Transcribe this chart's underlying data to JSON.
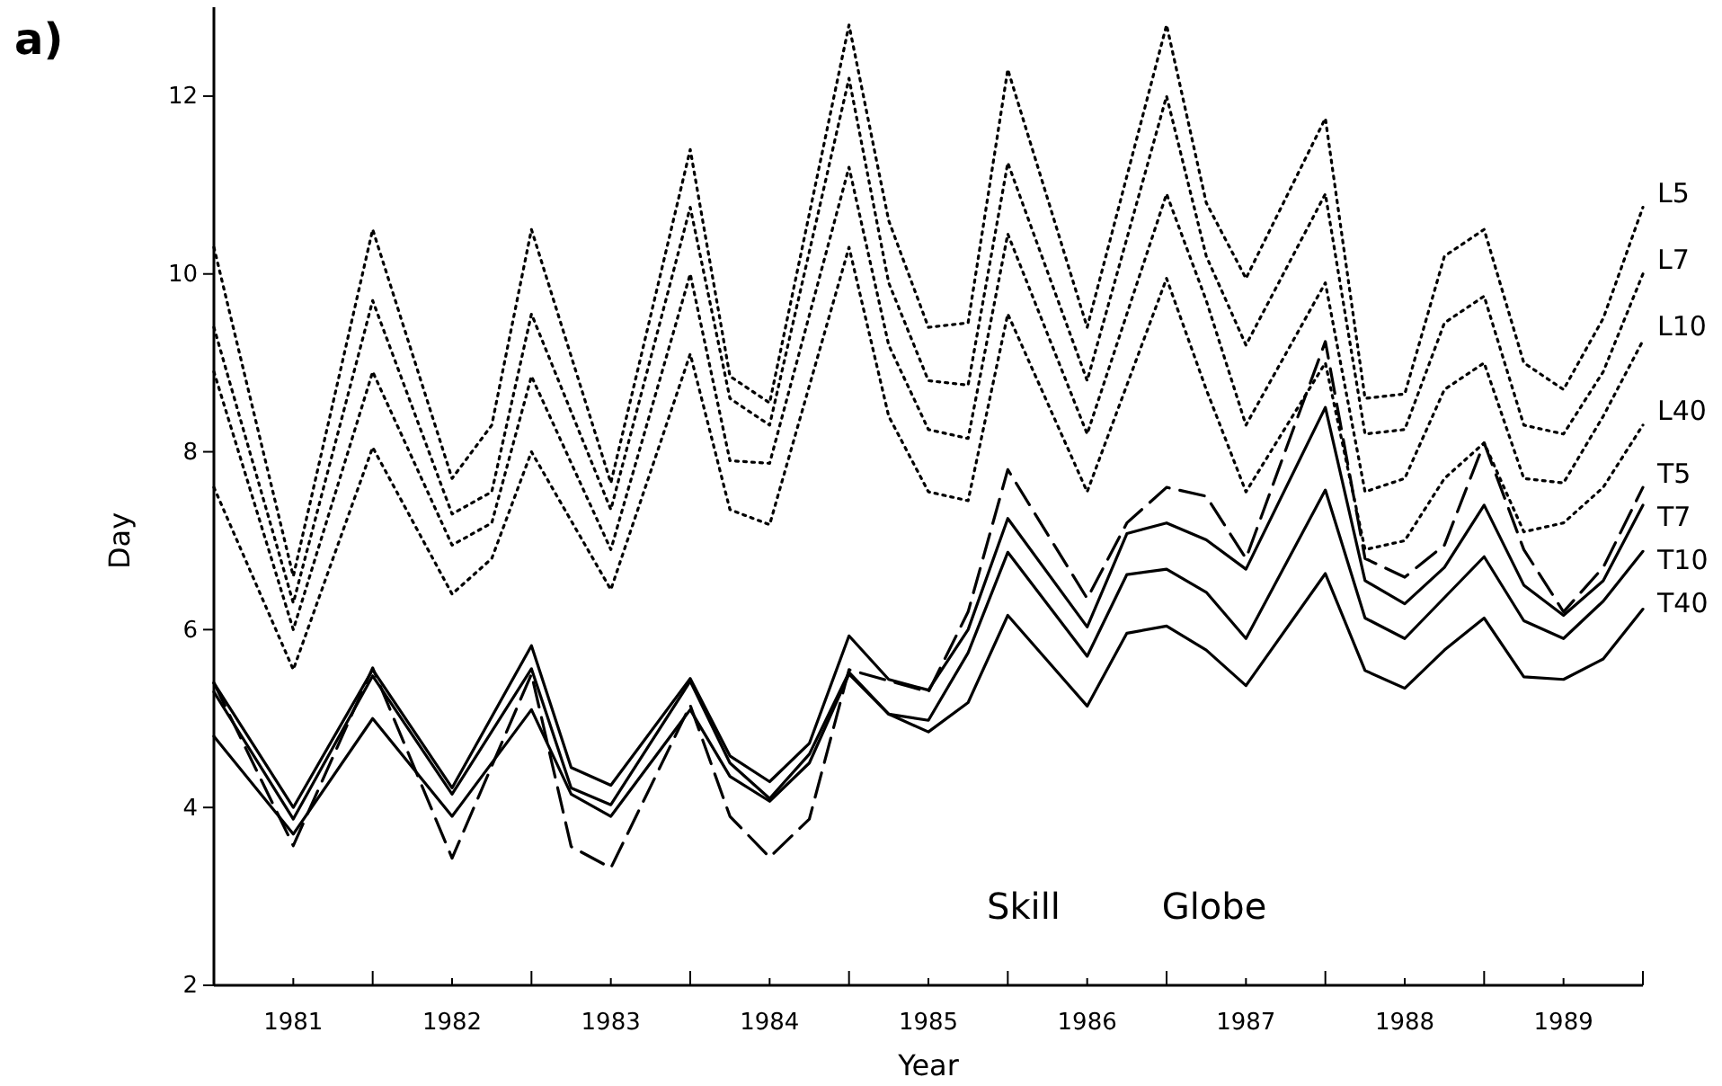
{
  "chart_data": {
    "type": "line",
    "title": "a)",
    "xlabel": "Year",
    "ylabel": "Day",
    "xlim": [
      1980.5,
      1989.5
    ],
    "ylim": [
      2,
      13
    ],
    "xticks": [
      {
        "value": 1980.5,
        "label": null
      },
      1981,
      {
        "value": 1981.5,
        "label": null
      },
      1982,
      {
        "value": 1982.5,
        "label": null
      },
      1983,
      {
        "value": 1983.5,
        "label": null
      },
      1984,
      {
        "value": 1984.5,
        "label": null
      },
      1985,
      {
        "value": 1985.5,
        "label": null
      },
      1986,
      {
        "value": 1986.5,
        "label": null
      },
      1987,
      {
        "value": 1987.5,
        "label": null
      },
      1988,
      {
        "value": 1988.5,
        "label": null
      },
      1989,
      {
        "value": 1989.5,
        "label": null
      }
    ],
    "yticks": [
      2,
      4,
      6,
      8,
      10,
      12
    ],
    "grid": false,
    "legend": false,
    "marker": "none",
    "annotations": [
      "Skill",
      "Globe"
    ],
    "series": [
      {
        "name": "L5",
        "color": "#000000",
        "line_style": "dotted",
        "x": [
          1980.5,
          1981,
          1981.5,
          1982,
          1982.25,
          1982.5,
          1983,
          1983.5,
          1983.75,
          1984,
          1984.5,
          1984.75,
          1985,
          1985.25,
          1985.5,
          1986,
          1986.5,
          1986.75,
          1987,
          1987.5,
          1987.75,
          1988,
          1988.25,
          1988.5,
          1988.75,
          1989,
          1989.25,
          1989.5
        ],
        "values": [
          10.3,
          6.6,
          10.5,
          7.7,
          8.3,
          10.5,
          7.65,
          11.4,
          8.85,
          8.55,
          12.8,
          10.6,
          9.4,
          9.45,
          12.3,
          9.4,
          12.8,
          10.8,
          9.95,
          11.75,
          8.6,
          8.65,
          10.2,
          10.5,
          9.0,
          8.7,
          9.5,
          10.75
        ]
      },
      {
        "name": "L7",
        "color": "#000000",
        "line_style": "dotted",
        "x": [
          1980.5,
          1981,
          1981.5,
          1982,
          1982.25,
          1982.5,
          1983,
          1983.5,
          1983.75,
          1984,
          1984.5,
          1984.75,
          1985,
          1985.25,
          1985.5,
          1986,
          1986.5,
          1986.75,
          1987,
          1987.5,
          1987.75,
          1988,
          1988.25,
          1988.5,
          1988.75,
          1989,
          1989.25,
          1989.5
        ],
        "values": [
          9.4,
          6.3,
          9.7,
          7.3,
          7.55,
          9.55,
          7.35,
          10.75,
          8.6,
          8.3,
          12.2,
          9.9,
          8.8,
          8.75,
          11.25,
          8.8,
          12.0,
          10.2,
          9.2,
          10.9,
          8.2,
          8.25,
          9.45,
          9.75,
          8.3,
          8.2,
          8.9,
          10.0
        ]
      },
      {
        "name": "L10",
        "color": "#000000",
        "line_style": "dotted",
        "x": [
          1980.5,
          1981,
          1981.5,
          1982,
          1982.25,
          1982.5,
          1983,
          1983.5,
          1983.75,
          1984,
          1984.5,
          1984.75,
          1985,
          1985.25,
          1985.5,
          1986,
          1986.5,
          1986.75,
          1987,
          1987.5,
          1987.75,
          1988,
          1988.25,
          1988.5,
          1988.75,
          1989,
          1989.25,
          1989.5
        ],
        "values": [
          8.9,
          6.0,
          8.9,
          6.95,
          7.2,
          8.85,
          6.9,
          10.0,
          7.9,
          7.87,
          11.2,
          9.2,
          8.25,
          8.15,
          10.45,
          8.2,
          10.9,
          9.7,
          8.3,
          9.9,
          7.55,
          7.7,
          8.7,
          9.0,
          7.7,
          7.65,
          8.4,
          9.25
        ]
      },
      {
        "name": "L40",
        "color": "#000000",
        "line_style": "dotted",
        "x": [
          1980.5,
          1981,
          1981.5,
          1982,
          1982.25,
          1982.5,
          1983,
          1983.5,
          1983.75,
          1984,
          1984.5,
          1984.75,
          1985,
          1985.25,
          1985.5,
          1986,
          1986.5,
          1986.75,
          1987,
          1987.5,
          1987.75,
          1988,
          1988.25,
          1988.5,
          1988.75,
          1989,
          1989.25,
          1989.5
        ],
        "values": [
          7.6,
          5.55,
          8.05,
          6.4,
          6.8,
          8.0,
          6.45,
          9.1,
          7.35,
          7.18,
          10.3,
          8.4,
          7.55,
          7.45,
          9.55,
          7.55,
          9.95,
          8.7,
          7.55,
          9.0,
          6.9,
          7.0,
          7.7,
          8.1,
          7.1,
          7.2,
          7.6,
          8.3
        ]
      },
      {
        "name": "T5",
        "color": "#000000",
        "line_style": "dashed",
        "x": [
          1980.5,
          1981,
          1981.5,
          1982,
          1982.5,
          1982.75,
          1983,
          1983.5,
          1983.75,
          1984,
          1984.25,
          1984.5,
          1985,
          1985.25,
          1985.5,
          1986,
          1986.25,
          1986.5,
          1986.75,
          1987,
          1987.5,
          1987.75,
          1988,
          1988.25,
          1988.5,
          1988.75,
          1989,
          1989.25,
          1989.5
        ],
        "values": [
          5.4,
          3.57,
          5.57,
          3.43,
          5.5,
          3.56,
          3.32,
          5.15,
          3.9,
          3.44,
          3.87,
          5.55,
          5.3,
          6.2,
          7.8,
          6.35,
          7.2,
          7.6,
          7.5,
          6.8,
          9.24,
          6.8,
          6.59,
          6.95,
          8.1,
          6.9,
          6.2,
          6.7,
          7.6
        ]
      },
      {
        "name": "T7",
        "color": "#000000",
        "line_style": "solid",
        "x": [
          1980.5,
          1981,
          1981.5,
          1982,
          1982.5,
          1982.75,
          1983,
          1983.5,
          1983.75,
          1984,
          1984.25,
          1984.5,
          1984.75,
          1985,
          1985.25,
          1985.5,
          1986,
          1986.25,
          1986.5,
          1986.75,
          1987,
          1987.5,
          1987.75,
          1988,
          1988.25,
          1988.5,
          1988.75,
          1989,
          1989.25,
          1989.5
        ],
        "values": [
          5.4,
          4.0,
          5.55,
          4.22,
          5.82,
          4.45,
          4.25,
          5.45,
          4.58,
          4.29,
          4.72,
          5.93,
          5.44,
          5.32,
          6.0,
          7.25,
          6.03,
          7.08,
          7.2,
          7.01,
          6.68,
          8.5,
          6.55,
          6.29,
          6.7,
          7.4,
          6.5,
          6.16,
          6.55,
          7.4
        ]
      },
      {
        "name": "T10",
        "color": "#000000",
        "line_style": "solid",
        "x": [
          1980.5,
          1981,
          1981.5,
          1982,
          1982.5,
          1982.75,
          1983,
          1983.5,
          1983.75,
          1984,
          1984.25,
          1984.5,
          1984.75,
          1985,
          1985.25,
          1985.5,
          1986,
          1986.25,
          1986.5,
          1986.75,
          1987,
          1987.5,
          1987.75,
          1988,
          1988.25,
          1988.5,
          1988.75,
          1989,
          1989.25,
          1989.5
        ],
        "values": [
          5.3,
          3.87,
          5.48,
          4.15,
          5.56,
          4.22,
          4.03,
          5.42,
          4.5,
          4.1,
          4.6,
          5.52,
          5.05,
          4.98,
          5.74,
          6.87,
          5.7,
          6.62,
          6.68,
          6.42,
          5.9,
          7.57,
          6.13,
          5.9,
          6.36,
          6.82,
          6.1,
          5.9,
          6.32,
          6.88
        ]
      },
      {
        "name": "T40",
        "color": "#000000",
        "line_style": "solid",
        "x": [
          1980.5,
          1981,
          1981.5,
          1982,
          1982.5,
          1982.75,
          1983,
          1983.5,
          1983.75,
          1984,
          1984.25,
          1984.5,
          1984.75,
          1985,
          1985.25,
          1985.5,
          1986,
          1986.25,
          1986.5,
          1986.75,
          1987,
          1987.5,
          1987.75,
          1988,
          1988.25,
          1988.5,
          1988.75,
          1989,
          1989.25,
          1989.5
        ],
        "values": [
          4.8,
          3.7,
          5.0,
          3.9,
          5.1,
          4.15,
          3.9,
          5.1,
          4.35,
          4.07,
          4.5,
          5.5,
          5.05,
          4.85,
          5.18,
          6.16,
          5.14,
          5.96,
          6.04,
          5.77,
          5.37,
          6.63,
          5.54,
          5.34,
          5.77,
          6.13,
          5.47,
          5.44,
          5.67,
          6.23
        ]
      }
    ]
  }
}
